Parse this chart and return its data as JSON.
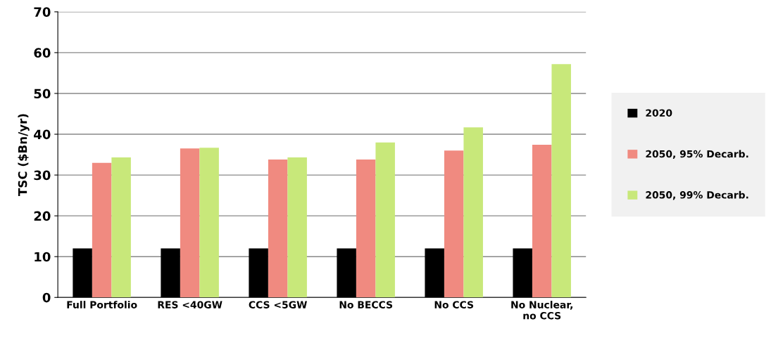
{
  "chart_data": {
    "type": "bar",
    "ylabel": "TSC ($Bn/yr)",
    "categories": [
      "Full Portfolio",
      "RES <40GW",
      "CCS <5GW",
      "No BECCS",
      "No CCS",
      "No Nuclear,\nno CCS"
    ],
    "series": [
      {
        "name": "2020",
        "color": "#000000",
        "values": [
          12,
          12,
          12,
          12,
          12,
          12
        ]
      },
      {
        "name": "2050, 95% Decarb.",
        "color": "#f08a80",
        "values": [
          33.0,
          36.5,
          33.8,
          33.8,
          36.0,
          37.4
        ]
      },
      {
        "name": "2050, 99% Decarb.",
        "color": "#c8e87a",
        "values": [
          34.3,
          36.7,
          34.3,
          38.0,
          41.7,
          57.2
        ]
      }
    ],
    "ylim": [
      0,
      70
    ],
    "yticks": [
      0,
      10,
      20,
      30,
      40,
      50,
      60,
      70
    ],
    "grid": "y",
    "legend": "right"
  }
}
